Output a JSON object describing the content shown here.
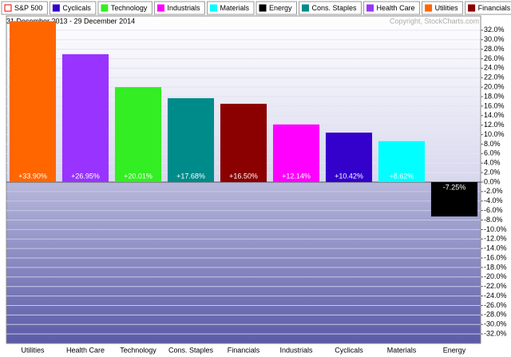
{
  "chart_data": {
    "type": "bar",
    "subtitle": "31 December 2013 - 29 December 2014",
    "copyright": "Copyright, StockCharts.com",
    "legend": [
      {
        "name": "S&P 500",
        "color": "#ffffff"
      },
      {
        "name": "Cyclicals",
        "color": "#3300cc"
      },
      {
        "name": "Technology",
        "color": "#33ee22"
      },
      {
        "name": "Industrials",
        "color": "#ff00ff"
      },
      {
        "name": "Materials",
        "color": "#00ffff"
      },
      {
        "name": "Energy",
        "color": "#000000"
      },
      {
        "name": "Cons. Staples",
        "color": "#008b8b"
      },
      {
        "name": "Health Care",
        "color": "#9933ff"
      },
      {
        "name": "Utilities",
        "color": "#ff6600"
      },
      {
        "name": "Financials",
        "color": "#8b0000"
      }
    ],
    "categories": [
      "Utilities",
      "Health Care",
      "Technology",
      "Cons. Staples",
      "Financials",
      "Industrials",
      "Cyclicals",
      "Materials",
      "Energy"
    ],
    "values": [
      33.9,
      26.95,
      20.01,
      17.68,
      16.5,
      12.14,
      10.42,
      8.62,
      -7.25
    ],
    "value_labels": [
      "+33.90%",
      "+26.95%",
      "+20.01%",
      "+17.68%",
      "+16.50%",
      "+12.14%",
      "+10.42%",
      "+8.62%",
      "-7.25%"
    ],
    "colors": [
      "#ff6600",
      "#9933ff",
      "#33ee22",
      "#008b8b",
      "#8b0000",
      "#ff00ff",
      "#3300cc",
      "#00ffff",
      "#000000"
    ],
    "ylim": [
      -34,
      35
    ],
    "yticks": [
      {
        "value": 32,
        "label": "32.0%"
      },
      {
        "value": 30,
        "label": "30.0%"
      },
      {
        "value": 28,
        "label": "28.0%"
      },
      {
        "value": 26,
        "label": "26.0%"
      },
      {
        "value": 24,
        "label": "24.0%"
      },
      {
        "value": 22,
        "label": "22.0%"
      },
      {
        "value": 20,
        "label": "20.0%"
      },
      {
        "value": 18,
        "label": "18.0%"
      },
      {
        "value": 16,
        "label": "16.0%"
      },
      {
        "value": 14,
        "label": "14.0%"
      },
      {
        "value": 12,
        "label": "12.0%"
      },
      {
        "value": 10,
        "label": "10.0%"
      },
      {
        "value": 8,
        "label": "8.0%"
      },
      {
        "value": 6,
        "label": "6.0%"
      },
      {
        "value": 4,
        "label": "4.0%"
      },
      {
        "value": 2,
        "label": "2.0%"
      },
      {
        "value": 0,
        "label": "0.0%"
      },
      {
        "value": -2,
        "label": "-2.0%"
      },
      {
        "value": -4,
        "label": "-4.0%"
      },
      {
        "value": -6,
        "label": "-6.0%"
      },
      {
        "value": -8,
        "label": "-8.0%"
      },
      {
        "value": -10,
        "label": "-10.0%"
      },
      {
        "value": -12,
        "label": "-12.0%"
      },
      {
        "value": -14,
        "label": "-14.0%"
      },
      {
        "value": -16,
        "label": "-16.0%"
      },
      {
        "value": -18,
        "label": "-18.0%"
      },
      {
        "value": -20,
        "label": "-20.0%"
      },
      {
        "value": -22,
        "label": "-22.0%"
      },
      {
        "value": -24,
        "label": "-24.0%"
      },
      {
        "value": -26,
        "label": "-26.0%"
      },
      {
        "value": -28,
        "label": "-28.0%"
      },
      {
        "value": -30,
        "label": "-30.0%"
      },
      {
        "value": -32,
        "label": "-32.0%"
      }
    ],
    "grid": true
  }
}
